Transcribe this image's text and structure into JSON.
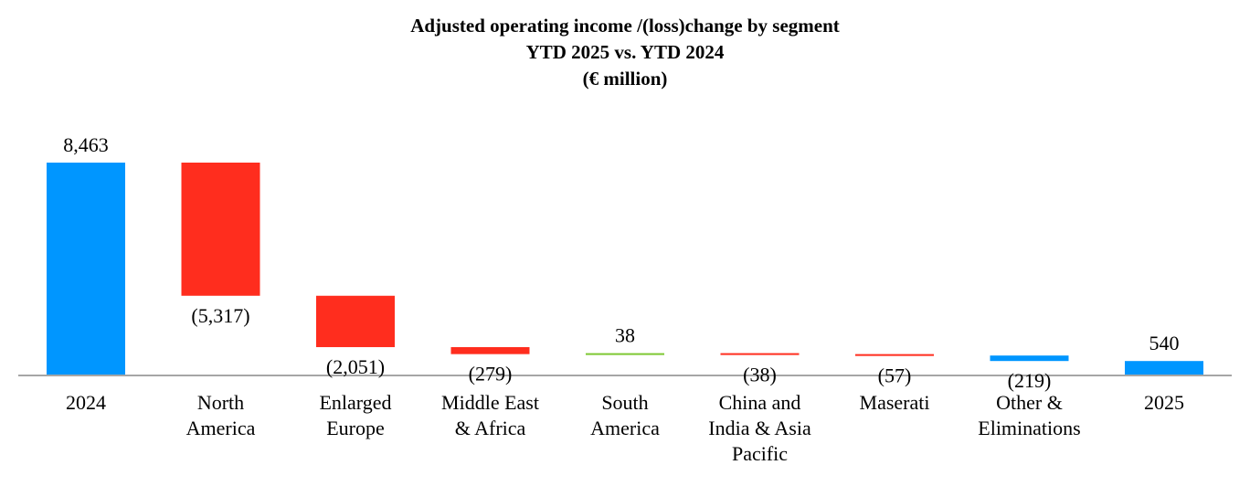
{
  "chart_data": {
    "type": "bar",
    "subtype": "waterfall",
    "title": "Adjusted operating income /(loss)change by segment",
    "subtitle": "YTD 2025 vs. YTD 2024",
    "unit": "(€ million)",
    "categories": [
      [
        "2024"
      ],
      [
        "North",
        "America"
      ],
      [
        "Enlarged",
        "Europe"
      ],
      [
        "Middle East",
        "& Africa"
      ],
      [
        "South",
        "America"
      ],
      [
        "China and",
        "India & Asia",
        "Pacific"
      ],
      [
        "Maserati"
      ],
      [
        "Other &",
        "Eliminations"
      ],
      [
        "2025"
      ]
    ],
    "values": [
      8463,
      -5317,
      -2051,
      -279,
      38,
      -38,
      -57,
      -219,
      540
    ],
    "value_labels": [
      "8,463",
      "(5,317)",
      "(2,051)",
      "(279)",
      "38",
      "(38)",
      "(57)",
      "(219)",
      "540"
    ],
    "kinds": [
      "total",
      "delta",
      "delta",
      "delta",
      "delta",
      "delta",
      "delta",
      "delta",
      "total"
    ],
    "colors": {
      "total": "#0096FF",
      "decrease": "#FF2D1E",
      "increase": "#7DC832",
      "other": "#0096FF",
      "axis": "#A6A6A6"
    },
    "ylim": [
      0,
      8463
    ],
    "grid": false,
    "legend": "none"
  }
}
